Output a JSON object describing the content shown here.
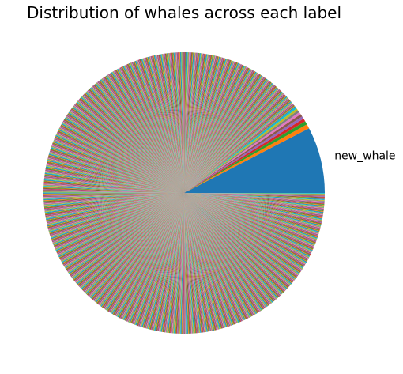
{
  "chart_data": {
    "type": "pie",
    "title": "Distribution of whales across each label",
    "slices": [
      {
        "label": "new_whale",
        "percent": 7.6,
        "color": "#1f77b4"
      },
      {
        "label": "",
        "percent": 0.5,
        "color": "#ff7f0e"
      },
      {
        "label": "",
        "percent": 0.4,
        "color": "#2ca02c"
      },
      {
        "label": "",
        "percent": 0.35,
        "color": "#d62728"
      },
      {
        "label": "",
        "percent": 0.3,
        "color": "#9467bd"
      },
      {
        "label": "",
        "percent": 0.3,
        "color": "#8c564b"
      },
      {
        "label": "",
        "percent": 0.28,
        "color": "#e377c2"
      },
      {
        "label": "",
        "percent": 0.26,
        "color": "#7f7f7f"
      },
      {
        "label": "",
        "percent": 0.25,
        "color": "#bcbd22"
      },
      {
        "label": "",
        "percent": 0.24,
        "color": "#17becf"
      }
    ],
    "remaining_labels": {
      "count": 1200,
      "total_percent": 89.52
    },
    "palette": [
      "#1f77b4",
      "#ff7f0e",
      "#2ca02c",
      "#d62728",
      "#9467bd",
      "#8c564b",
      "#e377c2",
      "#7f7f7f",
      "#bcbd22",
      "#17becf"
    ],
    "start_angle": 0,
    "direction": "counterclockwise",
    "legend": "none"
  }
}
